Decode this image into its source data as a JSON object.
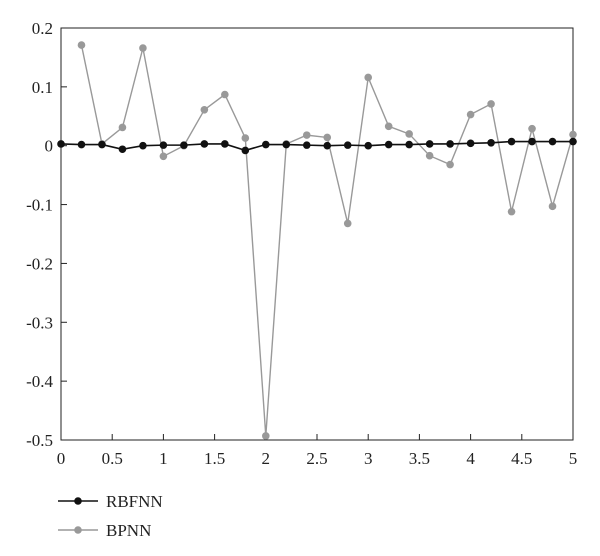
{
  "chart_data": {
    "type": "line",
    "title": "",
    "xlabel": "",
    "ylabel": "",
    "xlim": [
      0,
      5
    ],
    "ylim": [
      -0.5,
      0.2
    ],
    "grid": false,
    "legend_placement": "bottom-left",
    "x_ticks": [
      0,
      0.5,
      1,
      1.5,
      2,
      2.5,
      3,
      3.5,
      4,
      4.5,
      5
    ],
    "x_tick_labels": [
      "0",
      "0.5",
      "1",
      "1.5",
      "2",
      "2.5",
      "3",
      "3.5",
      "4",
      "4.5",
      "5"
    ],
    "y_ticks": [
      0.2,
      0.1,
      0,
      -0.1,
      -0.2,
      -0.3,
      -0.4,
      -0.5
    ],
    "y_tick_labels": [
      "0.2",
      "0.1",
      "0",
      "-0.1",
      "-0.2",
      "-0.3",
      "-0.4",
      "-0.5"
    ],
    "series": [
      {
        "name": "RBFNN",
        "color": "#111111",
        "x": [
          0,
          0.2,
          0.4,
          0.6,
          0.8,
          1.0,
          1.2,
          1.4,
          1.6,
          1.8,
          2.0,
          2.2,
          2.4,
          2.6,
          2.8,
          3.0,
          3.2,
          3.4,
          3.6,
          3.8,
          4.0,
          4.2,
          4.4,
          4.6,
          4.8,
          5.0
        ],
        "y": [
          0.003,
          0.002,
          0.002,
          -0.006,
          0.0,
          0.001,
          0.001,
          0.003,
          0.003,
          -0.008,
          0.002,
          0.002,
          0.001,
          0.0,
          0.001,
          0.0,
          0.002,
          0.002,
          0.003,
          0.003,
          0.004,
          0.005,
          0.007,
          0.007,
          0.007,
          0.007
        ]
      },
      {
        "name": "BPNN",
        "color": "#999999",
        "x": [
          0.2,
          0.4,
          0.6,
          0.8,
          1.0,
          1.2,
          1.4,
          1.6,
          1.8,
          2.0,
          2.2,
          2.4,
          2.6,
          2.8,
          3.0,
          3.2,
          3.4,
          3.6,
          3.8,
          4.0,
          4.2,
          4.4,
          4.6,
          4.8,
          5.0
        ],
        "y": [
          0.171,
          0.003,
          0.031,
          0.166,
          -0.018,
          0.0,
          0.061,
          0.087,
          0.013,
          -0.493,
          0.003,
          0.018,
          0.014,
          -0.132,
          0.116,
          0.033,
          0.02,
          -0.017,
          -0.032,
          0.053,
          0.071,
          -0.112,
          0.029,
          -0.103,
          0.019
        ]
      }
    ]
  }
}
